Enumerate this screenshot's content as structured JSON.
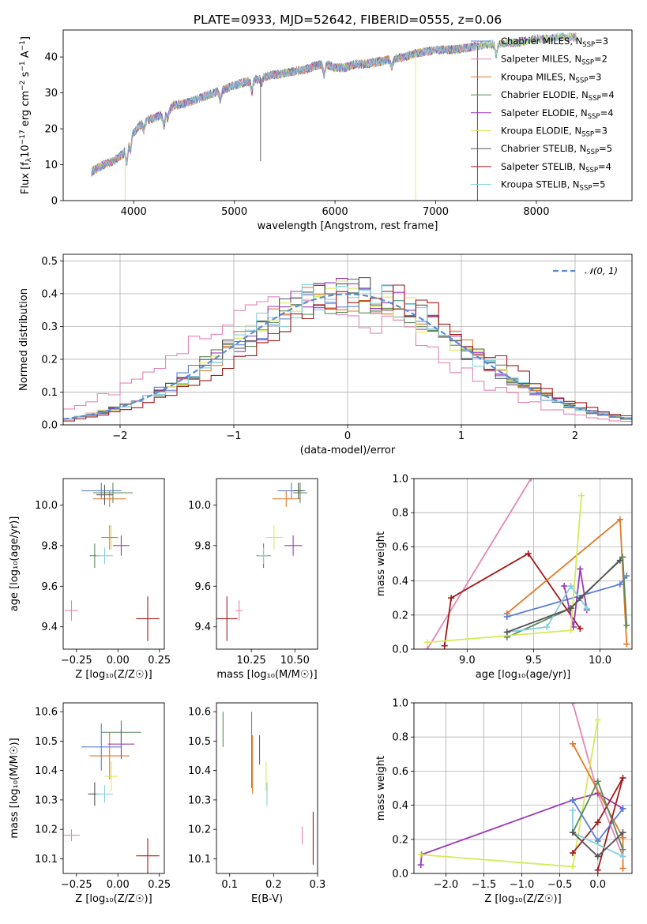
{
  "title": "PLATE=0933, MJD=52642, FIBERID=0555, z=0.06",
  "colors": {
    "Chabrier MILES": "#5b7fd9",
    "Salpeter MILES": "#e386b8",
    "Kroupa MILES": "#e07a2a",
    "Chabrier ELODIE": "#5c8a5c",
    "Salpeter ELODIE": "#9a3ab8",
    "Kroupa ELODIE": "#d7ea5a",
    "Chabrier STELIB": "#555555",
    "Salpeter STELIB": "#a31a1a",
    "Kroupa STELIB": "#84d0de"
  },
  "chart_data": [
    {
      "id": "spectrum",
      "type": "line",
      "xlabel": "wavelength [Angstrom, rest frame]",
      "ylabel_parts": [
        "Flux [f",
        "λ",
        "10",
        "−17",
        " erg cm",
        "−2",
        " s",
        "−1",
        " A",
        "−1",
        "]"
      ],
      "xlim": [
        3300,
        8950
      ],
      "ylim": [
        0,
        47.5
      ],
      "xticks": [
        4000,
        5000,
        6000,
        7000,
        8000
      ],
      "yticks": [
        0,
        10,
        20,
        30,
        40
      ],
      "continuum": [
        [
          3580,
          8
        ],
        [
          3700,
          10
        ],
        [
          3800,
          11
        ],
        [
          3900,
          13
        ],
        [
          3950,
          17
        ],
        [
          4000,
          19
        ],
        [
          4100,
          22
        ],
        [
          4200,
          23
        ],
        [
          4300,
          24
        ],
        [
          4400,
          26.5
        ],
        [
          4500,
          27
        ],
        [
          4600,
          28
        ],
        [
          4700,
          29
        ],
        [
          4800,
          30
        ],
        [
          4900,
          31
        ],
        [
          5000,
          32
        ],
        [
          5100,
          33
        ],
        [
          5200,
          33.5
        ],
        [
          5300,
          34.5
        ],
        [
          5400,
          35
        ],
        [
          5500,
          35.5
        ],
        [
          5600,
          36
        ],
        [
          5700,
          36.5
        ],
        [
          5800,
          37.5
        ],
        [
          5900,
          38
        ],
        [
          6000,
          37
        ],
        [
          6100,
          37
        ],
        [
          6200,
          38
        ],
        [
          6300,
          38
        ],
        [
          6400,
          38.5
        ],
        [
          6500,
          39
        ],
        [
          6600,
          39.5
        ],
        [
          6700,
          40
        ],
        [
          6800,
          41
        ],
        [
          6900,
          41.5
        ],
        [
          7000,
          42
        ],
        [
          7100,
          42
        ],
        [
          7200,
          42
        ],
        [
          7300,
          42.5
        ],
        [
          7400,
          43
        ],
        [
          7500,
          43.5
        ],
        [
          7600,
          43.5
        ],
        [
          7700,
          44
        ],
        [
          7800,
          44
        ],
        [
          7900,
          44.5
        ],
        [
          8000,
          45
        ],
        [
          8100,
          45
        ],
        [
          8200,
          45.5
        ],
        [
          8300,
          45.5
        ],
        [
          8400,
          45.5
        ]
      ],
      "legend_entries": [
        {
          "label": "Chabrier MILES, N",
          "sub": "SSP",
          "tail": "=3"
        },
        {
          "label": "Salpeter MILES, N",
          "sub": "SSP",
          "tail": "=2"
        },
        {
          "label": "Kroupa MILES, N",
          "sub": "SSP",
          "tail": "=3"
        },
        {
          "label": "Chabrier ELODIE, N",
          "sub": "SSP",
          "tail": "=4"
        },
        {
          "label": "Salpeter ELODIE, N",
          "sub": "SSP",
          "tail": "=4"
        },
        {
          "label": "Kroupa ELODIE, N",
          "sub": "SSP",
          "tail": "=3"
        },
        {
          "label": "Chabrier STELIB, N",
          "sub": "SSP",
          "tail": "=5"
        },
        {
          "label": "Salpeter STELIB, N",
          "sub": "SSP",
          "tail": "=4"
        },
        {
          "label": "Kroupa STELIB, N",
          "sub": "SSP",
          "tail": "=5"
        }
      ]
    },
    {
      "id": "residuals",
      "type": "line",
      "xlabel": "(data-model)/error",
      "ylabel": "Normed distribution",
      "xlim": [
        -2.5,
        2.5
      ],
      "ylim": [
        0,
        0.52
      ],
      "xticks": [
        -2,
        -1,
        0,
        1,
        2
      ],
      "yticks": [
        0.0,
        0.1,
        0.2,
        0.3,
        0.4,
        0.5
      ],
      "gaussian_label": "𝒩(0, 1)",
      "grid": true
    },
    {
      "id": "age-Z",
      "type": "scatter",
      "xlabel": "Z [log₁₀(Z/Z☉)]",
      "ylabel": "age  [log₁₀(age/yr)]",
      "xlim": [
        -0.33,
        0.28
      ],
      "ylim": [
        9.29,
        10.13
      ],
      "xticks": [
        -0.25,
        0.0,
        0.25
      ],
      "xticklabels": [
        "−0.25",
        "0.00",
        "0.25"
      ],
      "yticks": [
        9.4,
        9.6,
        9.8,
        10.0
      ],
      "yticklabels": [
        "9.4",
        "9.6",
        "9.8",
        "10.0"
      ],
      "points": [
        {
          "m": "Chabrier MILES",
          "x": -0.1,
          "xe": 0.12,
          "y": 10.07,
          "ye": 0.04
        },
        {
          "m": "Kroupa MILES",
          "x": -0.05,
          "xe": 0.1,
          "y": 10.03,
          "ye": 0.04
        },
        {
          "m": "Chabrier ELODIE",
          "x": -0.03,
          "xe": 0.12,
          "y": 10.06,
          "ye": 0.05
        },
        {
          "m": "Chabrier STELIB",
          "x": -0.08,
          "xe": 0.05,
          "y": 10.05,
          "ye": 0.05
        },
        {
          "m": "Kroupa ELODIE",
          "x": -0.04,
          "xe": 0.04,
          "y": 9.84,
          "ye": 0.06
        },
        {
          "m": "Salpeter ELODIE",
          "x": 0.02,
          "xe": 0.05,
          "y": 9.8,
          "ye": 0.05
        },
        {
          "m": "Chabrier ELODIE",
          "x": -0.14,
          "xe": 0.03,
          "y": 9.75,
          "ye": 0.06
        },
        {
          "m": "Kroupa STELIB",
          "x": -0.08,
          "xe": 0.05,
          "y": 9.75,
          "ye": 0.04
        },
        {
          "m": "Salpeter MILES",
          "x": -0.28,
          "xe": 0.04,
          "y": 9.48,
          "ye": 0.05
        },
        {
          "m": "Salpeter STELIB",
          "x": 0.18,
          "xe": 0.07,
          "y": 9.44,
          "ye": 0.11
        },
        {
          "m": "Kroupa MILES",
          "x": -0.05,
          "xe": 0.05,
          "y": 9.84,
          "ye": 0.06
        }
      ]
    },
    {
      "id": "age-mass",
      "type": "scatter",
      "xlabel": "mass [log₁₀(M/M☉)]",
      "xlim": [
        10.05,
        10.63
      ],
      "ylim": [
        9.29,
        10.13
      ],
      "xticks": [
        10.25,
        10.5
      ],
      "xticklabels": [
        "10.25",
        "10.50"
      ],
      "yticks": [
        9.4,
        9.6,
        9.8,
        10.0
      ],
      "yticklabels": [
        "9.4",
        "9.6",
        "9.8",
        "10.0"
      ],
      "points": [
        {
          "m": "Chabrier MILES",
          "x": 10.48,
          "xe": 0.08,
          "y": 10.07,
          "ye": 0.04
        },
        {
          "m": "Kroupa MILES",
          "x": 10.45,
          "xe": 0.08,
          "y": 10.03,
          "ye": 0.04
        },
        {
          "m": "Chabrier ELODIE",
          "x": 10.53,
          "xe": 0.04,
          "y": 10.06,
          "ye": 0.05
        },
        {
          "m": "Chabrier STELIB",
          "x": 10.52,
          "xe": 0.03,
          "y": 10.07,
          "ye": 0.04
        },
        {
          "m": "Kroupa ELODIE",
          "x": 10.38,
          "xe": 0.05,
          "y": 9.84,
          "ye": 0.06
        },
        {
          "m": "Salpeter ELODIE",
          "x": 10.49,
          "xe": 0.05,
          "y": 9.8,
          "ye": 0.05
        },
        {
          "m": "Chabrier ELODIE",
          "x": 10.32,
          "xe": 0.04,
          "y": 9.75,
          "ye": 0.06
        },
        {
          "m": "Kroupa STELIB",
          "x": 10.32,
          "xe": 0.03,
          "y": 9.75,
          "ye": 0.04
        },
        {
          "m": "Salpeter MILES",
          "x": 10.18,
          "xe": 0.02,
          "y": 9.48,
          "ye": 0.05
        },
        {
          "m": "Salpeter STELIB",
          "x": 10.11,
          "xe": 0.06,
          "y": 9.44,
          "ye": 0.11
        }
      ]
    },
    {
      "id": "weight-age",
      "type": "line",
      "xlabel": "age  [log₁₀(age/yr)]",
      "ylabel": "mass weight",
      "xlim": [
        8.6,
        10.24
      ],
      "ylim": [
        0,
        1
      ],
      "xticks": [
        9.0,
        9.5,
        10.0
      ],
      "xticklabels": [
        "9.0",
        "9.5",
        "10.0"
      ],
      "yticks": [
        0.0,
        0.2,
        0.4,
        0.6,
        0.8,
        1.0
      ],
      "yticklabels": [
        "0.0",
        "0.2",
        "0.4",
        "0.6",
        "0.8",
        "1.0"
      ],
      "grid": true,
      "series": [
        {
          "m": "Salpeter MILES",
          "pts": [
            [
              8.7,
              0.0
            ],
            [
              9.48,
              1.0
            ]
          ]
        },
        {
          "m": "Salpeter STELIB",
          "pts": [
            [
              8.83,
              0.02
            ],
            [
              8.88,
              0.3
            ],
            [
              9.46,
              0.56
            ],
            [
              9.85,
              0.12
            ]
          ]
        },
        {
          "m": "Kroupa MILES",
          "pts": [
            [
              9.3,
              0.21
            ],
            [
              10.15,
              0.76
            ],
            [
              10.2,
              0.03
            ]
          ]
        },
        {
          "m": "Chabrier MILES",
          "pts": [
            [
              9.3,
              0.19
            ],
            [
              10.15,
              0.38
            ],
            [
              10.2,
              0.43
            ]
          ]
        },
        {
          "m": "Chabrier ELODIE",
          "pts": [
            [
              9.3,
              0.07
            ],
            [
              9.78,
              0.24
            ],
            [
              10.17,
              0.54
            ],
            [
              10.2,
              0.14
            ]
          ]
        },
        {
          "m": "Salpeter ELODIE",
          "pts": [
            [
              9.73,
              0.37
            ],
            [
              9.8,
              0.13
            ],
            [
              9.85,
              0.47
            ],
            [
              9.9,
              0.23
            ]
          ]
        },
        {
          "m": "Kroupa ELODIE",
          "pts": [
            [
              8.7,
              0.04
            ],
            [
              9.78,
              0.11
            ],
            [
              9.86,
              0.9
            ]
          ]
        },
        {
          "m": "Kroupa STELIB",
          "pts": [
            [
              9.3,
              0.1
            ],
            [
              9.6,
              0.13
            ],
            [
              9.78,
              0.37
            ],
            [
              9.9,
              0.24
            ]
          ]
        },
        {
          "m": "Chabrier STELIB",
          "pts": [
            [
              9.3,
              0.1
            ],
            [
              9.78,
              0.24
            ],
            [
              9.85,
              0.3
            ],
            [
              10.15,
              0.52
            ]
          ]
        }
      ]
    },
    {
      "id": "mass-Z",
      "type": "scatter",
      "xlabel": "Z [log₁₀(Z/Z☉)]",
      "ylabel": "mass [log₁₀(M/M☉)]",
      "xlim": [
        -0.33,
        0.28
      ],
      "ylim": [
        10.05,
        10.63
      ],
      "xticks": [
        -0.25,
        0.0,
        0.25
      ],
      "xticklabels": [
        "−0.25",
        "0.00",
        "0.25"
      ],
      "yticks": [
        10.1,
        10.2,
        10.3,
        10.4,
        10.5,
        10.6
      ],
      "yticklabels": [
        "10.1",
        "10.2",
        "10.3",
        "10.4",
        "10.5",
        "10.6"
      ],
      "points": [
        {
          "m": "Chabrier MILES",
          "x": -0.1,
          "xe": 0.12,
          "y": 10.48,
          "ye": 0.08
        },
        {
          "m": "Kroupa MILES",
          "x": -0.05,
          "xe": 0.12,
          "y": 10.45,
          "ye": 0.08
        },
        {
          "m": "Chabrier ELODIE",
          "x": 0.02,
          "xe": 0.12,
          "y": 10.53,
          "ye": 0.04
        },
        {
          "m": "Salpeter ELODIE",
          "x": 0.02,
          "xe": 0.08,
          "y": 10.49,
          "ye": 0.05
        },
        {
          "m": "Kroupa ELODIE",
          "x": -0.04,
          "xe": 0.04,
          "y": 10.38,
          "ye": 0.05
        },
        {
          "m": "Chabrier STELIB",
          "x": -0.14,
          "xe": 0.04,
          "y": 10.32,
          "ye": 0.04
        },
        {
          "m": "Kroupa STELIB",
          "x": -0.08,
          "xe": 0.05,
          "y": 10.32,
          "ye": 0.03
        },
        {
          "m": "Salpeter MILES",
          "x": -0.28,
          "xe": 0.05,
          "y": 10.18,
          "ye": 0.02
        },
        {
          "m": "Salpeter STELIB",
          "x": 0.18,
          "xe": 0.07,
          "y": 10.11,
          "ye": 0.06
        }
      ]
    },
    {
      "id": "mass-EBV",
      "type": "scatter",
      "xlabel": "E(B-V)",
      "xlim": [
        0.07,
        0.3
      ],
      "ylim": [
        10.05,
        10.63
      ],
      "xticks": [
        0.1,
        0.2,
        0.3
      ],
      "xticklabels": [
        "0.1",
        "0.2",
        "0.3"
      ],
      "yticks": [
        10.1,
        10.2,
        10.3,
        10.4,
        10.5,
        10.6
      ],
      "yticklabels": [
        "10.1",
        "10.2",
        "10.3",
        "10.4",
        "10.5",
        "10.6"
      ],
      "points": [
        {
          "m": "Chabrier ELODIE",
          "x": 0.085,
          "xe": 0,
          "y": 10.54,
          "ye": 0.06
        },
        {
          "m": "Chabrier MILES",
          "x": 0.15,
          "xe": 0,
          "y": 10.47,
          "ye": 0.13
        },
        {
          "m": "Kroupa MILES",
          "x": 0.152,
          "xe": 0,
          "y": 10.42,
          "ye": 0.1
        },
        {
          "m": "Salpeter ELODIE",
          "x": 0.168,
          "xe": 0,
          "y": 10.47,
          "ye": 0.05
        },
        {
          "m": "Kroupa ELODIE",
          "x": 0.183,
          "xe": 0,
          "y": 10.38,
          "ye": 0.05
        },
        {
          "m": "Kroupa STELIB",
          "x": 0.185,
          "xe": 0,
          "y": 10.32,
          "ye": 0.04
        },
        {
          "m": "Salpeter MILES",
          "x": 0.265,
          "xe": 0,
          "y": 10.18,
          "ye": 0.03
        },
        {
          "m": "Salpeter STELIB",
          "x": 0.29,
          "xe": 0,
          "y": 10.17,
          "ye": 0.09
        }
      ]
    },
    {
      "id": "weight-Z",
      "type": "line",
      "xlabel": "Z [log₁₀(Z/Z☉)]",
      "ylabel": "mass weight",
      "xlim": [
        -2.42,
        0.45
      ],
      "ylim": [
        0,
        1
      ],
      "xticks": [
        -2.0,
        -1.5,
        -1.0,
        -0.5,
        0.0
      ],
      "xticklabels": [
        "−2.0",
        "−1.5",
        "−1.0",
        "−0.5",
        "0.0"
      ],
      "yticks": [
        0.0,
        0.2,
        0.4,
        0.6,
        0.8,
        1.0
      ],
      "yticklabels": [
        "0.0",
        "0.2",
        "0.4",
        "0.6",
        "0.8",
        "1.0"
      ],
      "grid": true,
      "series": [
        {
          "m": "Salpeter MILES",
          "pts": [
            [
              -0.33,
              1.0
            ],
            [
              0.0,
              0.47
            ],
            [
              0.33,
              0.1
            ]
          ]
        },
        {
          "m": "Salpeter ELODIE",
          "pts": [
            [
              -2.33,
              0.05
            ],
            [
              -2.32,
              0.11
            ],
            [
              -0.33,
              0.43
            ],
            [
              0.0,
              0.47
            ],
            [
              0.33,
              0.38
            ]
          ]
        },
        {
          "m": "Kroupa ELODIE",
          "pts": [
            [
              -2.33,
              0.11
            ],
            [
              -0.33,
              0.04
            ],
            [
              0.0,
              0.9
            ]
          ]
        },
        {
          "m": "Kroupa MILES",
          "pts": [
            [
              -0.33,
              0.76
            ],
            [
              0.33,
              0.21
            ],
            [
              0.33,
              0.03
            ]
          ]
        },
        {
          "m": "Salpeter STELIB",
          "pts": [
            [
              -0.33,
              0.12
            ],
            [
              0.0,
              0.3
            ],
            [
              0.33,
              0.56
            ],
            [
              0.0,
              0.02
            ]
          ]
        },
        {
          "m": "Chabrier MILES",
          "pts": [
            [
              -0.33,
              0.43
            ],
            [
              0.0,
              0.19
            ],
            [
              0.33,
              0.38
            ]
          ]
        },
        {
          "m": "Chabrier ELODIE",
          "pts": [
            [
              -0.33,
              0.24
            ],
            [
              0.0,
              0.54
            ],
            [
              0.33,
              0.14
            ]
          ]
        },
        {
          "m": "Kroupa STELIB",
          "pts": [
            [
              -0.33,
              0.37
            ],
            [
              -0.33,
              0.24
            ],
            [
              0.33,
              0.1
            ]
          ]
        },
        {
          "m": "Chabrier STELIB",
          "pts": [
            [
              -0.33,
              0.24
            ],
            [
              0.0,
              0.1
            ],
            [
              0.33,
              0.24
            ]
          ]
        }
      ]
    }
  ]
}
